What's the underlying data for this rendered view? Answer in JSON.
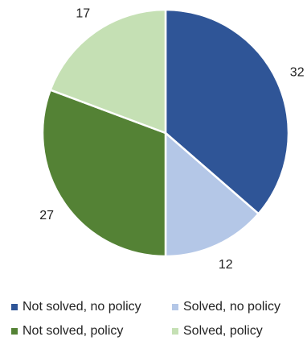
{
  "chart_data": {
    "type": "pie",
    "categories": [
      "Not solved, no policy",
      "Solved, no policy",
      "Not solved, policy",
      "Solved, policy"
    ],
    "values": [
      32,
      12,
      27,
      17
    ],
    "colors": [
      "#2f5597",
      "#b4c7e7",
      "#548235",
      "#c5e0b4"
    ],
    "legend_position": "bottom",
    "start_angle_deg": 0,
    "direction": "clockwise"
  }
}
